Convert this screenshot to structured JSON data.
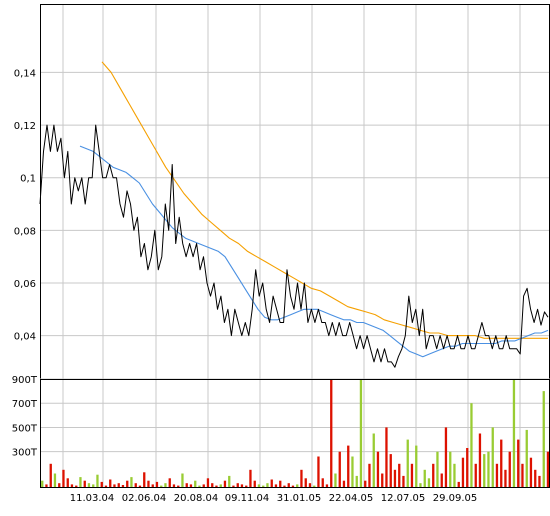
{
  "chart_data": [
    {
      "type": "line",
      "title": "",
      "xlabel": "",
      "ylabel": "",
      "ylim": [
        0.022,
        0.166
      ],
      "grid": true,
      "legend": "none",
      "x_ticks": [
        "11.03.04",
        "02.06.04",
        "20.08.04",
        "09.11.04",
        "31.01.05",
        "22.04.05",
        "12.07.05",
        "29.09.05"
      ],
      "y_ticks": [
        "0,04",
        "0,06",
        "0,08",
        "0,1",
        "0,12",
        "0,14"
      ],
      "y_tick_values": [
        0.04,
        0.06,
        0.08,
        0.1,
        0.12,
        0.14
      ],
      "series": [
        {
          "color": "#000000",
          "style": "price",
          "values": [
            0.09,
            0.11,
            0.12,
            0.11,
            0.12,
            0.11,
            0.115,
            0.1,
            0.11,
            0.09,
            0.1,
            0.095,
            0.1,
            0.09,
            0.1,
            0.1,
            0.12,
            0.11,
            0.1,
            0.1,
            0.105,
            0.1,
            0.1,
            0.09,
            0.085,
            0.095,
            0.09,
            0.08,
            0.085,
            0.07,
            0.075,
            0.065,
            0.07,
            0.08,
            0.065,
            0.07,
            0.09,
            0.08,
            0.105,
            0.075,
            0.085,
            0.075,
            0.07,
            0.075,
            0.07,
            0.075,
            0.065,
            0.07,
            0.06,
            0.055,
            0.06,
            0.05,
            0.055,
            0.045,
            0.05,
            0.04,
            0.05,
            0.045,
            0.04,
            0.045,
            0.04,
            0.05,
            0.065,
            0.055,
            0.06,
            0.05,
            0.045,
            0.055,
            0.05,
            0.045,
            0.045,
            0.065,
            0.055,
            0.05,
            0.06,
            0.05,
            0.06,
            0.045,
            0.05,
            0.045,
            0.05,
            0.045,
            0.045,
            0.04,
            0.045,
            0.04,
            0.045,
            0.04,
            0.04,
            0.045,
            0.04,
            0.035,
            0.04,
            0.035,
            0.04,
            0.035,
            0.03,
            0.035,
            0.03,
            0.035,
            0.03,
            0.03,
            0.028,
            0.032,
            0.035,
            0.04,
            0.055,
            0.045,
            0.05,
            0.04,
            0.05,
            0.035,
            0.04,
            0.04,
            0.035,
            0.04,
            0.035,
            0.04,
            0.035,
            0.035,
            0.04,
            0.035,
            0.035,
            0.04,
            0.035,
            0.035,
            0.04,
            0.045,
            0.04,
            0.04,
            0.035,
            0.04,
            0.035,
            0.035,
            0.04,
            0.035,
            0.035,
            0.035,
            0.033,
            0.055,
            0.058,
            0.05,
            0.045,
            0.05,
            0.044,
            0.049,
            0.047
          ]
        },
        {
          "color": "#4a90e2",
          "style": "moving-average-short",
          "values": [
            0.112,
            0.111,
            0.11,
            0.108,
            0.106,
            0.104,
            0.103,
            0.102,
            0.1,
            0.098,
            0.094,
            0.09,
            0.087,
            0.084,
            0.081,
            0.079,
            0.077,
            0.076,
            0.075,
            0.074,
            0.073,
            0.072,
            0.07,
            0.066,
            0.062,
            0.058,
            0.054,
            0.05,
            0.047,
            0.046,
            0.046,
            0.047,
            0.048,
            0.049,
            0.05,
            0.05,
            0.05,
            0.049,
            0.048,
            0.047,
            0.046,
            0.046,
            0.045,
            0.045,
            0.044,
            0.043,
            0.042,
            0.04,
            0.038,
            0.036,
            0.034,
            0.033,
            0.032,
            0.033,
            0.034,
            0.035,
            0.036,
            0.036,
            0.037,
            0.037,
            0.037,
            0.037,
            0.037,
            0.037,
            0.038,
            0.038,
            0.038,
            0.039,
            0.04,
            0.041,
            0.041,
            0.042
          ]
        },
        {
          "color": "#f5a000",
          "style": "moving-average-long",
          "values": [
            0.144,
            0.14,
            0.134,
            0.128,
            0.122,
            0.116,
            0.11,
            0.104,
            0.099,
            0.094,
            0.09,
            0.086,
            0.083,
            0.08,
            0.077,
            0.075,
            0.072,
            0.07,
            0.068,
            0.066,
            0.064,
            0.062,
            0.06,
            0.058,
            0.057,
            0.055,
            0.053,
            0.051,
            0.05,
            0.049,
            0.048,
            0.046,
            0.045,
            0.044,
            0.043,
            0.042,
            0.041,
            0.041,
            0.04,
            0.04,
            0.04,
            0.04,
            0.039,
            0.039,
            0.039,
            0.039,
            0.039,
            0.039,
            0.039,
            0.039
          ]
        }
      ]
    },
    {
      "type": "bar",
      "title": "",
      "xlabel": "",
      "ylabel": "",
      "ylim": [
        0,
        900
      ],
      "grid": true,
      "legend": "none",
      "x_ticks": [
        "11.03.04",
        "02.06.04",
        "20.08.04",
        "09.11.04",
        "31.01.05",
        "22.04.05",
        "12.07.05",
        "29.09.05"
      ],
      "y_ticks": [
        "900T",
        "700T",
        "500T",
        "300T"
      ],
      "y_tick_values": [
        900,
        700,
        500,
        300
      ],
      "unit": "T",
      "colors": {
        "up": "#99cc33",
        "down": "#dd1100"
      },
      "series": [
        {
          "name": "",
          "values": [
            60,
            30,
            200,
            120,
            40,
            150,
            80,
            30,
            20,
            90,
            60,
            40,
            30,
            110,
            50,
            20,
            70,
            30,
            40,
            25,
            60,
            90,
            40,
            20,
            130,
            60,
            30,
            50,
            20,
            40,
            80,
            30,
            20,
            120,
            40,
            30,
            60,
            20,
            30,
            80,
            40,
            20,
            30,
            60,
            100,
            20,
            40,
            30,
            20,
            150,
            60,
            30,
            20,
            40,
            70,
            30,
            60,
            20,
            40,
            20,
            30,
            150,
            80,
            40,
            20,
            260,
            80,
            30,
            900,
            120,
            300,
            60,
            350,
            260,
            100,
            900,
            60,
            200,
            450,
            300,
            120,
            500,
            280,
            150,
            200,
            100,
            400,
            200,
            350,
            40,
            150,
            80,
            200,
            300,
            120,
            500,
            300,
            200,
            50,
            250,
            330,
            700,
            200,
            450,
            280,
            300,
            500,
            200,
            400,
            150,
            300,
            900,
            400,
            200,
            480,
            250,
            150,
            100,
            800,
            300
          ]
        }
      ]
    }
  ]
}
